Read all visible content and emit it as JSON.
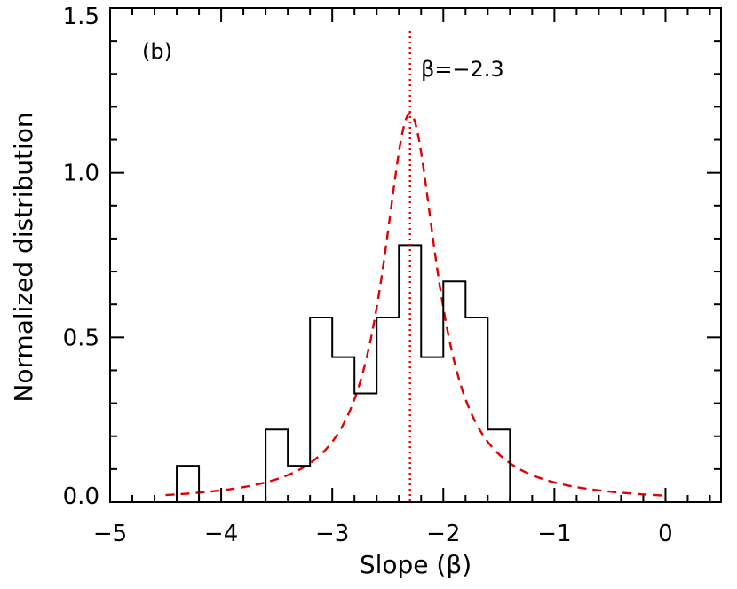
{
  "chart_data": {
    "type": "histogram",
    "panel_label": "(b)",
    "xlabel": "Slope (β)",
    "ylabel": "Normalized distribution",
    "xlim": [
      -5,
      0.5
    ],
    "ylim": [
      0,
      1.5
    ],
    "x_ticks": [
      {
        "value": -5,
        "label": "−5"
      },
      {
        "value": -4,
        "label": "−4"
      },
      {
        "value": -3,
        "label": "−3"
      },
      {
        "value": -2,
        "label": "−2"
      },
      {
        "value": -1,
        "label": "−1"
      },
      {
        "value": 0,
        "label": "0"
      }
    ],
    "y_ticks": [
      {
        "value": 0.0,
        "label": "0.0"
      },
      {
        "value": 0.5,
        "label": "0.5"
      },
      {
        "value": 1.0,
        "label": "1.0"
      },
      {
        "value": 1.5,
        "label": "1.5"
      }
    ],
    "grid": false,
    "histogram": {
      "color": "#000000",
      "bins": [
        {
          "x0": -4.4,
          "x1": -4.2,
          "value": 0.11
        },
        {
          "x0": -4.2,
          "x1": -4.0,
          "value": 0.0
        },
        {
          "x0": -4.0,
          "x1": -3.8,
          "value": 0.0
        },
        {
          "x0": -3.8,
          "x1": -3.6,
          "value": 0.0
        },
        {
          "x0": -3.6,
          "x1": -3.4,
          "value": 0.22
        },
        {
          "x0": -3.4,
          "x1": -3.2,
          "value": 0.11
        },
        {
          "x0": -3.2,
          "x1": -3.0,
          "value": 0.56
        },
        {
          "x0": -3.0,
          "x1": -2.8,
          "value": 0.44
        },
        {
          "x0": -2.8,
          "x1": -2.6,
          "value": 0.33
        },
        {
          "x0": -2.6,
          "x1": -2.4,
          "value": 0.56
        },
        {
          "x0": -2.4,
          "x1": -2.2,
          "value": 0.78
        },
        {
          "x0": -2.2,
          "x1": -2.0,
          "value": 0.44
        },
        {
          "x0": -2.0,
          "x1": -1.8,
          "value": 0.67
        },
        {
          "x0": -1.8,
          "x1": -1.6,
          "value": 0.56
        },
        {
          "x0": -1.6,
          "x1": -1.4,
          "value": 0.22
        }
      ]
    },
    "fit_curve": {
      "type": "lorentzian",
      "style": "dashed",
      "color": "#e00000",
      "center": -2.3,
      "peak": 1.18,
      "hwhm": 0.3,
      "x_range": [
        -4.5,
        0.0
      ]
    },
    "reference_line": {
      "x": -2.3,
      "style": "dotted",
      "color": "#e00000",
      "y_top": 1.43,
      "label": "β=−2.3"
    }
  }
}
